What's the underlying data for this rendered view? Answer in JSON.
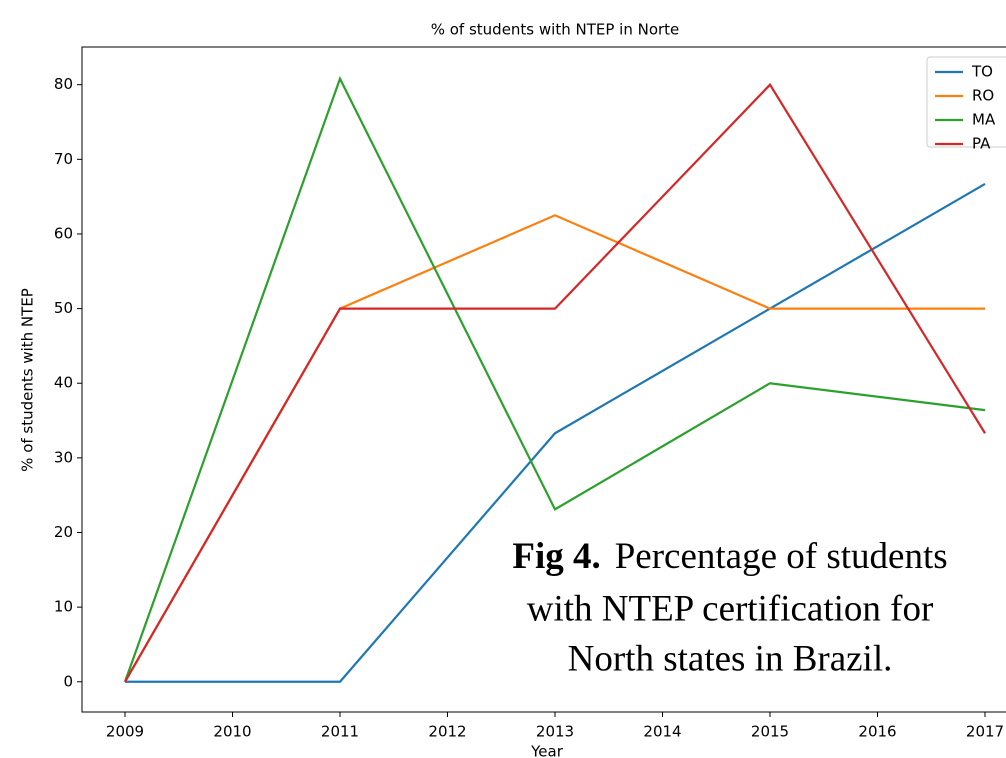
{
  "chart_data": {
    "type": "line",
    "title": "% of students with NTEP in Norte",
    "xlabel": "Year",
    "ylabel": "% of students with NTEP",
    "x": [
      2009,
      2011,
      2013,
      2015,
      2017
    ],
    "series": [
      {
        "name": "TO",
        "color": "#1f77b4",
        "values": [
          0,
          0,
          33.3,
          50,
          66.7
        ]
      },
      {
        "name": "RO",
        "color": "#ff7f0e",
        "values": [
          0,
          50,
          62.5,
          50,
          50
        ]
      },
      {
        "name": "MA",
        "color": "#2ca02c",
        "values": [
          0,
          80.8,
          23.1,
          40,
          36.4
        ]
      },
      {
        "name": "PA",
        "color": "#d62728",
        "values": [
          0,
          50,
          50,
          80,
          33.3
        ]
      }
    ],
    "xlim": [
      2008.6,
      2017.4
    ],
    "xticks": [
      2009,
      2010,
      2011,
      2012,
      2013,
      2014,
      2015,
      2016,
      2017
    ],
    "ylim": [
      -4.05,
      85.05
    ],
    "yticks": [
      0,
      10,
      20,
      30,
      40,
      50,
      60,
      70,
      80
    ],
    "legend": "upper right",
    "annotation": {
      "label": "Fig 4.",
      "lines": [
        "Percentage  of students",
        "with NTEP certification for",
        "North states in Brazil."
      ]
    }
  }
}
